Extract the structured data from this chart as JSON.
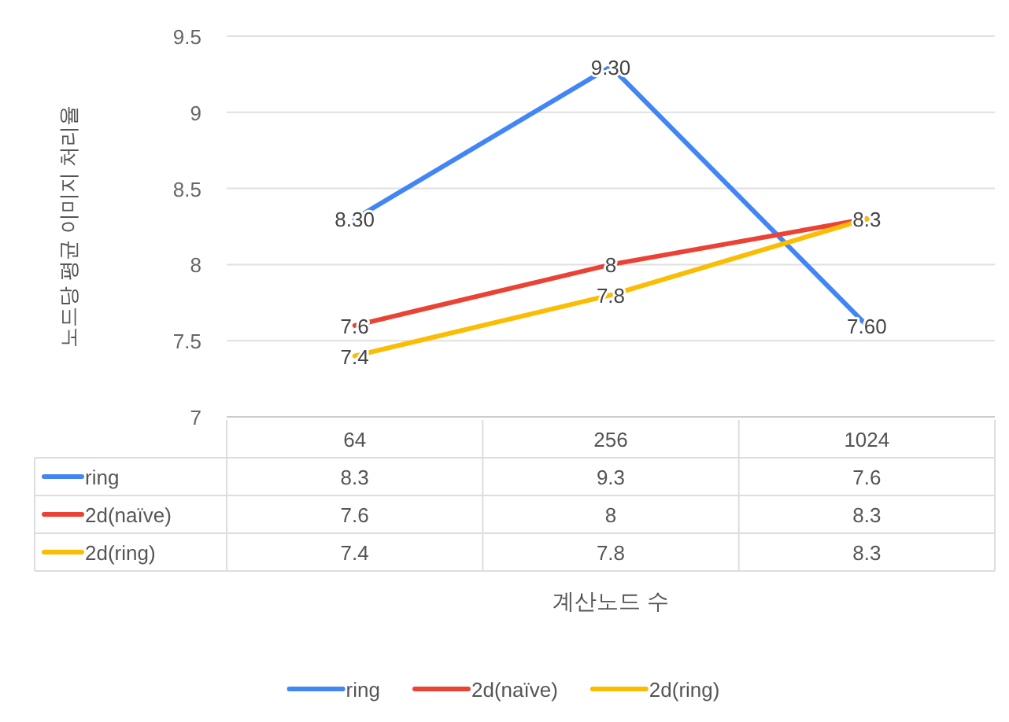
{
  "chart_data": {
    "type": "line",
    "ylabel": "노드당 평균 이미지 처리율",
    "categories": [
      "64",
      "256",
      "1024"
    ],
    "series": [
      {
        "name": "ring",
        "color": "#4285f4",
        "values": [
          8.3,
          9.3,
          7.6
        ]
      },
      {
        "name": "2d(naïve)",
        "color": "#ea4335",
        "values": [
          7.6,
          8,
          8.3
        ]
      },
      {
        "name": "2d(ring)",
        "color": "#fbbc04",
        "values": [
          7.4,
          7.8,
          8.3
        ]
      }
    ],
    "annotations": [
      {
        "text": "8.30",
        "x": "64",
        "y": 8.3
      },
      {
        "text": "9.30",
        "x": "256",
        "y": 9.3
      },
      {
        "text": "7.60",
        "x": "1024",
        "y": 7.6
      },
      {
        "text": "7.6",
        "x": "64",
        "y": 7.6
      },
      {
        "text": "8",
        "x": "256",
        "y": 8
      },
      {
        "text": "8.3",
        "x": "1024",
        "y": 8.3
      },
      {
        "text": "7.4",
        "x": "64",
        "y": 7.4
      },
      {
        "text": "7.8",
        "x": "256",
        "y": 7.8
      },
      "계산노드 수"
    ],
    "ylim": [
      7,
      9.5
    ],
    "yticks": [
      7,
      7.5,
      8,
      8.5,
      9,
      9.5
    ],
    "grid": "y",
    "legend": "bottom",
    "data_labels": true,
    "marker": "none",
    "line_style": "solid"
  }
}
